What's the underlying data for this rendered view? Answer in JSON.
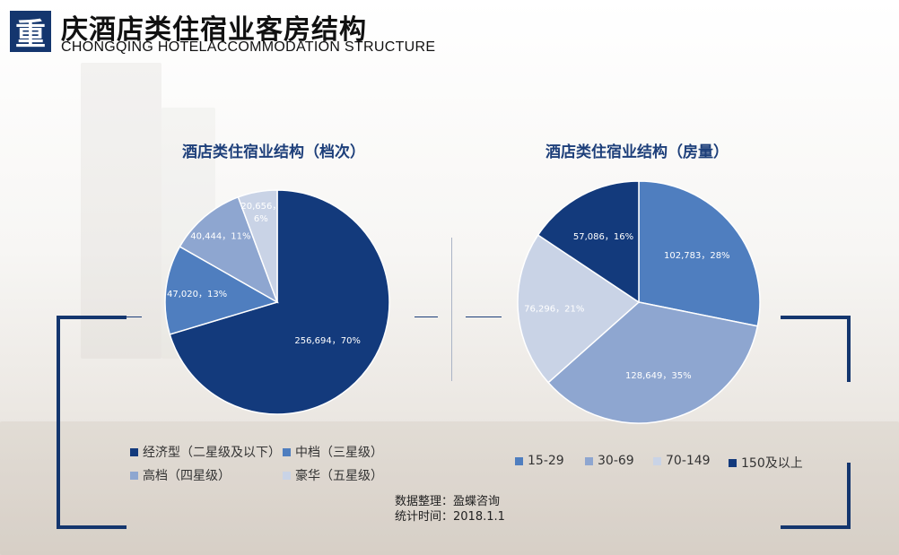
{
  "header": {
    "logo_char": "重",
    "title": "庆酒店类住宿业客房结构",
    "subtitle": "CHONGQING HOTELACCOMMODATION STRUCTURE"
  },
  "chart_data": [
    {
      "type": "pie",
      "title": "酒店类住宿业结构（档次）",
      "slices": [
        {
          "name": "经济型（二星级及以下）",
          "value": 256694,
          "label": "256,694，70%",
          "color": "#133a7c"
        },
        {
          "name": "中档（三星级）",
          "value": 47020,
          "label": "47,020，13%",
          "color": "#4f7ebf"
        },
        {
          "name": "高档（四星级）",
          "value": 40444,
          "label": "40,444，11%",
          "color": "#8ea6d0"
        },
        {
          "name": "豪华（五星级）",
          "value": 20656,
          "label": "20,656，\n6%",
          "color": "#c9d3e6"
        }
      ],
      "legend_position": "bottom"
    },
    {
      "type": "pie",
      "title": "酒店类住宿业结构（房量）",
      "slices": [
        {
          "name": "15-29",
          "value": 102783,
          "label": "102,783，28%",
          "color": "#4f7ebf"
        },
        {
          "name": "30-69",
          "value": 128649,
          "label": "128,649，35%",
          "color": "#8ea6d0"
        },
        {
          "name": "70-149",
          "value": 76296,
          "label": "76,296，21%",
          "color": "#c9d3e6"
        },
        {
          "name": "150及以上",
          "value": 57086,
          "label": "57,086，16%",
          "color": "#133a7c"
        }
      ],
      "legend_position": "bottom"
    }
  ],
  "source": {
    "line1": "数据整理：盈蝶咨询",
    "line2": "统计时间：2018.1.1"
  }
}
